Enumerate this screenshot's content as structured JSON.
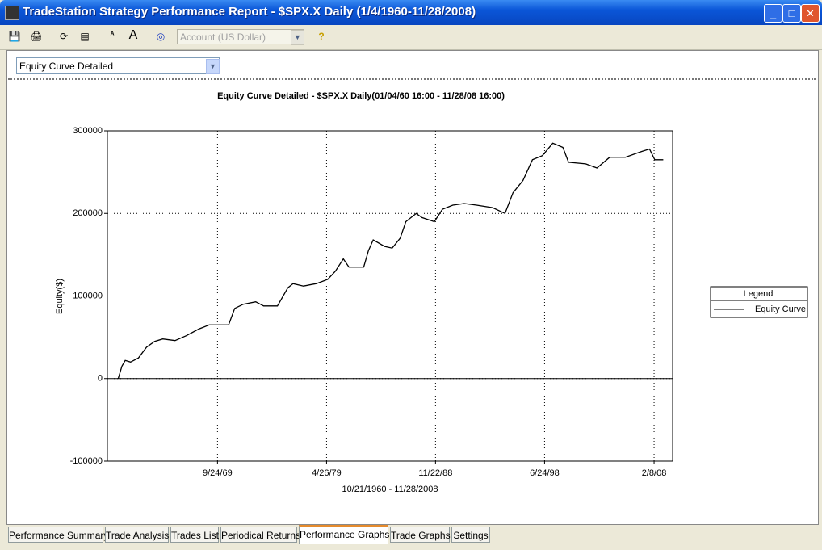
{
  "window": {
    "title": "TradeStation Strategy Performance Report - $SPX.X Daily (1/4/1960-11/28/2008)"
  },
  "toolbar": {
    "account": "Account (US Dollar)"
  },
  "view_selector": "Equity Curve Detailed",
  "tabs": [
    "Performance Summary",
    "Trade Analysis",
    "Trades List",
    "Periodical Returns",
    "Performance Graphs",
    "Trade Graphs",
    "Settings"
  ],
  "active_tab": 4,
  "chart_data": {
    "type": "line",
    "title": "Equity Curve Detailed - $SPX.X Daily(01/04/60 16:00 - 11/28/08 16:00)",
    "x_label": "10/21/1960 - 11/28/2008",
    "y_label": "Equity($)",
    "legend_title": "Legend",
    "x": [
      "1961-01-01",
      "1961-05-01",
      "1961-08-15",
      "1962-02-01",
      "1962-10-15",
      "1963-07-01",
      "1964-03-15",
      "1964-12-01",
      "1966-01-01",
      "1967-01-01",
      "1968-02-01",
      "1969-01-01",
      "1970-09-15",
      "1971-04-01",
      "1972-01-01",
      "1973-02-01",
      "1973-10-15",
      "1975-01-01",
      "1975-12-01",
      "1976-05-15",
      "1977-04-15",
      "1978-06-01",
      "1979-06-01",
      "1980-02-01",
      "1980-10-15",
      "1981-04-15",
      "1982-08-01",
      "1983-01-01",
      "1983-06-01",
      "1984-06-01",
      "1985-02-01",
      "1985-10-15",
      "1986-04-15",
      "1987-03-15",
      "1987-09-15",
      "1988-10-15",
      "1989-07-01",
      "1990-06-01",
      "1991-06-01",
      "1992-07-01",
      "1993-12-01",
      "1995-01-01",
      "1995-09-15",
      "1996-08-01",
      "1997-06-01",
      "1998-04-15",
      "1999-03-15",
      "2000-02-01",
      "2000-08-01",
      "2002-02-01",
      "2003-02-01",
      "2004-03-15",
      "2005-08-01",
      "2007-01-01",
      "2007-09-15",
      "2008-03-01",
      "2008-11-28"
    ],
    "series": [
      {
        "name": "Equity Curve",
        "color": "#000000",
        "values": [
          0,
          15000,
          22000,
          20000,
          25000,
          38000,
          45000,
          48000,
          46000,
          52000,
          60000,
          65000,
          65000,
          85000,
          90000,
          93000,
          88000,
          88000,
          110000,
          115000,
          112000,
          115000,
          120000,
          130000,
          145000,
          135000,
          135000,
          155000,
          168000,
          160000,
          158000,
          170000,
          190000,
          200000,
          195000,
          190000,
          205000,
          210000,
          212000,
          210000,
          207000,
          200000,
          225000,
          240000,
          265000,
          270000,
          285000,
          280000,
          262000,
          260000,
          255000,
          268000,
          268000,
          275000,
          278000,
          265000,
          265000
        ]
      }
    ],
    "xlim": [
      "1960-01-20",
      "2009-09-25"
    ],
    "ylim": [
      -100000,
      300000
    ],
    "xticks": [
      {
        "value": "1969-09-24",
        "label": "9/24/69"
      },
      {
        "value": "1979-04-26",
        "label": "4/26/79"
      },
      {
        "value": "1988-11-22",
        "label": "11/22/88"
      },
      {
        "value": "1998-06-24",
        "label": "6/24/98"
      },
      {
        "value": "2008-02-08",
        "label": "2/8/08"
      }
    ],
    "yticks": [
      -100000,
      0,
      100000,
      200000,
      300000
    ],
    "grid": true,
    "legend": "right"
  }
}
